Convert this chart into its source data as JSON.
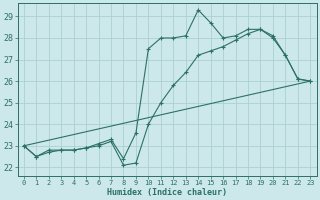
{
  "xlabel": "Humidex (Indice chaleur)",
  "bg_color": "#cce8eb",
  "grid_color": "#aacfd4",
  "line_color": "#2d7068",
  "xlim": [
    -0.5,
    23.5
  ],
  "ylim": [
    21.6,
    29.6
  ],
  "yticks": [
    22,
    23,
    24,
    25,
    26,
    27,
    28,
    29
  ],
  "xticks": [
    0,
    1,
    2,
    3,
    4,
    5,
    6,
    7,
    8,
    9,
    10,
    11,
    12,
    13,
    14,
    15,
    16,
    17,
    18,
    19,
    20,
    21,
    22,
    23
  ],
  "line1_x": [
    0,
    1,
    2,
    3,
    4,
    5,
    6,
    7,
    8,
    9,
    10,
    11,
    12,
    13,
    14,
    15,
    16,
    17,
    18,
    19,
    20,
    21,
    22,
    23
  ],
  "line1_y": [
    23.0,
    22.5,
    22.7,
    22.8,
    22.8,
    22.9,
    23.1,
    23.3,
    22.4,
    23.6,
    27.5,
    28.0,
    28.0,
    28.1,
    29.3,
    28.7,
    28.0,
    28.1,
    28.4,
    28.4,
    28.0,
    27.2,
    26.1,
    26.0
  ],
  "line2_x": [
    0,
    1,
    2,
    3,
    4,
    5,
    6,
    7,
    8,
    9,
    10,
    11,
    12,
    13,
    14,
    15,
    16,
    17,
    18,
    19,
    20,
    21,
    22,
    23
  ],
  "line2_y": [
    23.0,
    22.5,
    22.8,
    22.8,
    22.8,
    22.9,
    23.0,
    23.2,
    22.1,
    22.2,
    24.0,
    25.0,
    25.8,
    26.4,
    27.2,
    27.4,
    27.6,
    27.9,
    28.2,
    28.4,
    28.1,
    27.2,
    26.1,
    26.0
  ],
  "line3_x": [
    0,
    23
  ],
  "line3_y": [
    23.0,
    26.0
  ]
}
